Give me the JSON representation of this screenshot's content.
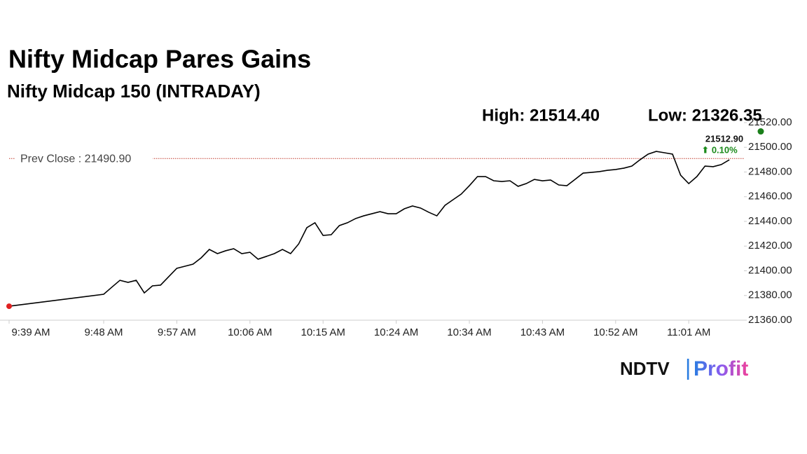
{
  "chart_data": {
    "type": "line",
    "title": "Nifty Midcap Pares Gains",
    "subtitle": "Nifty Midcap 150 (INTRADAY)",
    "high_label": "High: 21514.40",
    "low_label": "Low: 21326.35",
    "prev_close": 21490.9,
    "prev_close_label": "Prev Close : 21490.90",
    "current": 21512.9,
    "current_label": "21512.90",
    "change_label": "⬆ 0.10%",
    "logo": {
      "left": "NDTV",
      "divider": "|",
      "right": "Profit"
    },
    "categories": [
      "9:39 AM",
      "9:48 AM",
      null,
      null,
      null,
      null,
      null,
      null,
      null,
      null,
      "9:57 AM",
      null,
      null,
      null,
      null,
      null,
      null,
      null,
      null,
      "10:06 AM",
      null,
      null,
      null,
      null,
      null,
      null,
      null,
      null,
      "10:15 AM",
      null,
      null,
      null,
      null,
      null,
      null,
      null,
      null,
      "10:24 AM",
      null,
      null,
      null,
      null,
      null,
      null,
      null,
      null,
      "10:34 AM",
      null,
      null,
      null,
      null,
      null,
      null,
      null,
      null,
      "10:43 AM",
      null,
      null,
      null,
      null,
      null,
      null,
      null,
      null,
      "10:52 AM",
      null,
      null,
      null,
      null,
      null,
      null,
      null,
      null,
      "11:01 AM",
      null,
      null,
      null,
      null,
      null
    ],
    "series": [
      {
        "name": "Nifty Midcap 150",
        "color": "#000000",
        "values": [
          21371.3,
          21381.0,
          21386.7,
          21392.3,
          21390.6,
          21392.3,
          21382.1,
          21387.8,
          21388.4,
          21395.2,
          21402.0,
          21403.7,
          21405.4,
          21410.5,
          21417.3,
          21413.9,
          21416.2,
          21417.9,
          21413.9,
          21415.0,
          21409.4,
          21411.6,
          21413.9,
          21417.3,
          21413.9,
          21421.8,
          21434.9,
          21438.9,
          21428.6,
          21429.2,
          21436.6,
          21438.9,
          21442.3,
          21444.5,
          21446.2,
          21447.9,
          21446.2,
          21446.2,
          21450.2,
          21452.5,
          21450.8,
          21447.4,
          21444.5,
          21453.0,
          21457.6,
          21462.1,
          21468.9,
          21476.3,
          21476.3,
          21472.9,
          21472.3,
          21472.9,
          21468.4,
          21470.6,
          21474.0,
          21472.9,
          21473.5,
          21469.5,
          21468.9,
          21474.0,
          21479.1,
          21479.7,
          21480.3,
          21481.4,
          21482.0,
          21483.1,
          21484.8,
          21489.9,
          21494.5,
          21496.7,
          21495.6,
          21494.5,
          21477.4,
          21470.6,
          21476.3,
          21484.8,
          21484.3,
          21486.0,
          21489.9
        ]
      }
    ],
    "ylim": [
      21360,
      21520
    ],
    "yticks": [
      {
        "value": 21360,
        "label": "21360.00"
      },
      {
        "value": 21380,
        "label": "21380.00"
      },
      {
        "value": 21400,
        "label": "21400.00"
      },
      {
        "value": 21420,
        "label": "21420.00"
      },
      {
        "value": 21440,
        "label": "21440.00"
      },
      {
        "value": 21460,
        "label": "21460.00"
      },
      {
        "value": 21480,
        "label": "21480.00"
      },
      {
        "value": 21500,
        "label": "21500.00"
      },
      {
        "value": 21520,
        "label": "21520.00"
      }
    ],
    "grid": false
  }
}
